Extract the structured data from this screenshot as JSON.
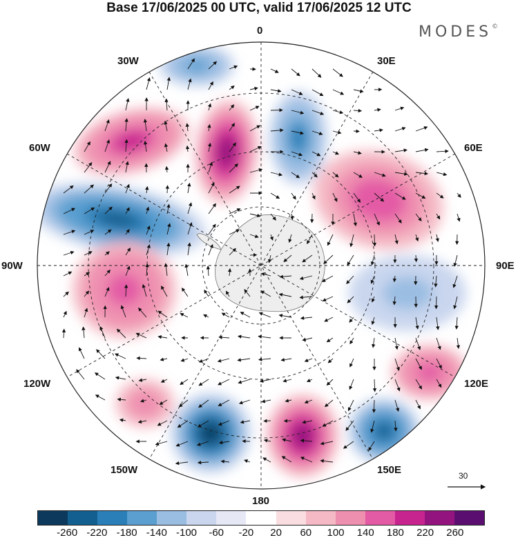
{
  "title": "Base 17/06/2025 00 UTC, valid 17/06/2025 12 UTC",
  "logo": "MODES",
  "logo_mark": "©",
  "lon_labels": {
    "lon_0": "0",
    "lon_30e": "30E",
    "lon_60e": "60E",
    "lon_90e": "90E",
    "lon_120e": "120E",
    "lon_150e": "150E",
    "lon_180": "180",
    "lon_150w": "150W",
    "lon_120w": "120W",
    "lon_90w": "90W",
    "lon_60w": "60W",
    "lon_30w": "30W"
  },
  "reference_vector": "30",
  "colorbar": {
    "colors": [
      "#0d3a5c",
      "#135f8f",
      "#2a7fb8",
      "#5a9fd0",
      "#9abde2",
      "#c9d6ee",
      "#e6e8f6",
      "#ffffff",
      "#f9dde1",
      "#f4b9c4",
      "#ef8fb0",
      "#e35aa5",
      "#c8248f",
      "#93147e",
      "#5a0f70"
    ],
    "ticks": [
      "-260",
      "-220",
      "-180",
      "-140",
      "-100",
      "-60",
      "-20",
      "20",
      "60",
      "100",
      "140",
      "180",
      "220",
      "260"
    ]
  },
  "map_data": {
    "projection": "south-polar-stereographic",
    "center_feature": "Antarctica",
    "anomalies": [
      {
        "name": "low-30W",
        "sign": "negative",
        "magnitude": 140
      },
      {
        "name": "high-45W",
        "sign": "positive",
        "magnitude": 180
      },
      {
        "name": "high-20W",
        "sign": "positive",
        "magnitude": 200
      },
      {
        "name": "low-10E",
        "sign": "negative",
        "magnitude": 180
      },
      {
        "name": "high-45E",
        "sign": "positive",
        "magnitude": 120
      },
      {
        "name": "low-75W",
        "sign": "negative",
        "magnitude": 220
      },
      {
        "name": "high-100W",
        "sign": "positive",
        "magnitude": 140
      },
      {
        "name": "low-100E",
        "sign": "negative",
        "magnitude": 100
      },
      {
        "name": "high-125E",
        "sign": "positive",
        "magnitude": 140
      },
      {
        "name": "low-150E",
        "sign": "negative",
        "magnitude": 220
      },
      {
        "name": "high-175E",
        "sign": "positive",
        "magnitude": 200
      },
      {
        "name": "low-165W",
        "sign": "negative",
        "magnitude": 240
      },
      {
        "name": "high-140W",
        "sign": "positive",
        "magnitude": 80
      }
    ]
  }
}
